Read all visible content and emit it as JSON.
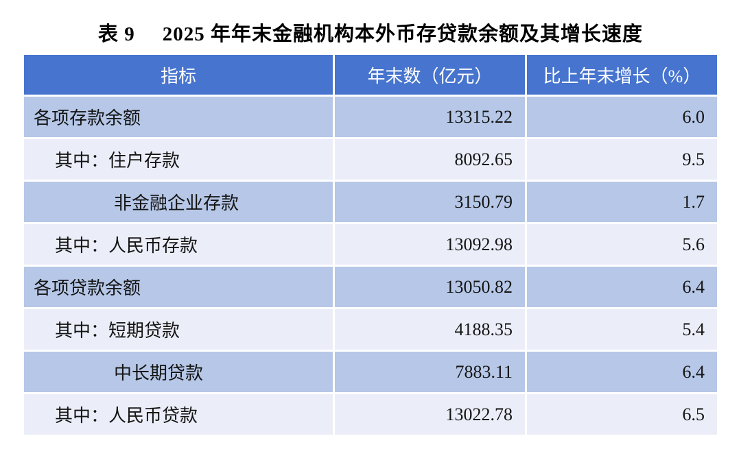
{
  "title": {
    "label": "表 9",
    "text": "2025 年年末金融机构本外币存贷款余额及其增长速度"
  },
  "table": {
    "headers": {
      "indicator": "指标",
      "value": "年末数（亿元）",
      "growth": "比上年末增长（%）"
    },
    "rows": [
      {
        "indicator": "各项存款余额",
        "value": "13315.22",
        "growth": "6.0",
        "indent": 0
      },
      {
        "indicator": "其中：住户存款",
        "value": "8092.65",
        "growth": "9.5",
        "indent": 1
      },
      {
        "indicator": "非金融企业存款",
        "value": "3150.79",
        "growth": "1.7",
        "indent": 2
      },
      {
        "indicator": "其中：人民币存款",
        "value": "13092.98",
        "growth": "5.6",
        "indent": 1
      },
      {
        "indicator": "各项贷款余额",
        "value": "13050.82",
        "growth": "6.4",
        "indent": 0
      },
      {
        "indicator": "其中：短期贷款",
        "value": "4188.35",
        "growth": "5.4",
        "indent": 1
      },
      {
        "indicator": "中长期贷款",
        "value": "7883.11",
        "growth": "6.4",
        "indent": 2
      },
      {
        "indicator": "其中：人民币贷款",
        "value": "13022.78",
        "growth": "6.5",
        "indent": 1
      }
    ],
    "colors": {
      "header_bg": "#4674CE",
      "header_text": "#FFFFFF",
      "row_odd_bg": "#B6C7E7",
      "row_even_bg": "#EBEEF8",
      "body_text": "#141414",
      "title_text": "#000000"
    }
  },
  "chart_data": {
    "type": "table",
    "title": "表 9 2025 年年末金融机构本外币存贷款余额及其增长速度",
    "columns": [
      "指标",
      "年末数（亿元）",
      "比上年末增长（%）"
    ],
    "rows": [
      [
        "各项存款余额",
        13315.22,
        6.0
      ],
      [
        "其中：住户存款",
        8092.65,
        9.5
      ],
      [
        "非金融企业存款",
        3150.79,
        1.7
      ],
      [
        "其中：人民币存款",
        13092.98,
        5.6
      ],
      [
        "各项贷款余额",
        13050.82,
        6.4
      ],
      [
        "其中：短期贷款",
        4188.35,
        5.4
      ],
      [
        "中长期贷款",
        7883.11,
        6.4
      ],
      [
        "其中：人民币贷款",
        13022.78,
        6.5
      ]
    ]
  }
}
